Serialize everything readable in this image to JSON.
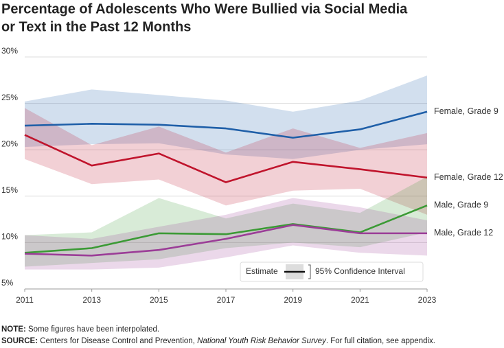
{
  "chart_data": {
    "type": "line-band",
    "title": [
      "Percentage of Adolescents Who Were Bullied via Social Media",
      "or Text in the Past 12 Months"
    ],
    "x": [
      2011,
      2013,
      2015,
      2017,
      2019,
      2021,
      2023
    ],
    "xlim": [
      2011,
      2023
    ],
    "xticks": [
      2011,
      2013,
      2015,
      2017,
      2019,
      2021,
      2023
    ],
    "ylim": [
      5,
      30
    ],
    "yticks": [
      {
        "value": 5,
        "label": "5%"
      },
      {
        "value": 10,
        "label": "10%"
      },
      {
        "value": 15,
        "label": "15%"
      },
      {
        "value": 20,
        "label": "20%"
      },
      {
        "value": 25,
        "label": "25%"
      },
      {
        "value": 30,
        "label": "30%"
      }
    ],
    "grid": true,
    "series": [
      {
        "name": "Female, Grade 9",
        "color": "#1f5fa8",
        "values": [
          22.6,
          22.8,
          22.7,
          22.3,
          21.3,
          22.2,
          24.1
        ],
        "lower": [
          20.3,
          20.6,
          20.7,
          19.5,
          19.0,
          20.0,
          20.6
        ],
        "upper": [
          25.2,
          26.5,
          25.9,
          25.3,
          24.1,
          25.3,
          28.0
        ]
      },
      {
        "name": "Female, Grade 12",
        "color": "#c0142c",
        "values": [
          21.6,
          18.3,
          19.6,
          16.5,
          18.7,
          17.9,
          17.0
        ],
        "lower": [
          19.0,
          16.3,
          16.8,
          14.0,
          15.6,
          15.8,
          13.0
        ],
        "upper": [
          24.5,
          20.5,
          22.5,
          19.7,
          22.3,
          20.2,
          21.8
        ]
      },
      {
        "name": "Male, Grade 9",
        "color": "#3b9a35",
        "values": [
          8.9,
          9.4,
          11.0,
          10.9,
          12.0,
          11.1,
          14.0
        ],
        "lower": [
          7.4,
          7.8,
          8.2,
          9.4,
          10.0,
          9.5,
          11.1
        ],
        "upper": [
          10.8,
          11.1,
          14.8,
          12.6,
          14.2,
          13.2,
          17.1
        ]
      },
      {
        "name": "Male, Grade 12",
        "color": "#9b3d97",
        "values": [
          8.8,
          8.6,
          9.2,
          10.4,
          11.9,
          11.0,
          11.0
        ],
        "lower": [
          7.1,
          7.1,
          7.3,
          8.4,
          9.7,
          8.9,
          8.6
        ],
        "upper": [
          10.8,
          10.4,
          11.7,
          13.0,
          14.8,
          13.8,
          12.4
        ]
      }
    ],
    "legend": {
      "estimate": "Estimate",
      "interval": "95% Confidence Interval"
    },
    "note": {
      "label": "NOTE:",
      "text": " Some figures have been interpolated."
    },
    "source": {
      "label": "SOURCE:",
      "text": " Centers for Disease Control and Prevention, ",
      "italic": "National Youth Risk Behavior Survey",
      "tail": ". For full citation, see appendix."
    }
  }
}
